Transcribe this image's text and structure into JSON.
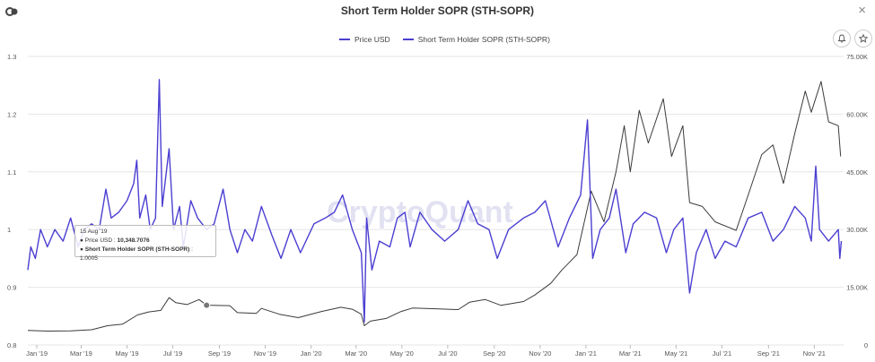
{
  "header": {
    "title": "Short Term Holder SOPR (STH-SOPR)",
    "close_label": "×"
  },
  "icons": {
    "logo": "cryptoquant-logo-icon",
    "alert": "bell-icon",
    "favorite": "star-icon"
  },
  "watermark": "CryptoQuant",
  "tooltip": {
    "date": "15 Aug '19",
    "price_label": "Price USD",
    "price_value": "10,348.7076",
    "sopr_label": "Short Term Holder SOPR (STH-SOPR)",
    "sopr_value": "1.0005"
  },
  "colors": {
    "price": "#3b3b3b",
    "sopr": "#4b3fd1",
    "grid": "#e6e6e6"
  },
  "chart_data": {
    "type": "line",
    "title": "Short Term Holder SOPR (STH-SOPR)",
    "x_ticks": [
      "Jan '19",
      "Mar '19",
      "May '19",
      "Jul '19",
      "Sep '19",
      "Nov '19",
      "Jan '20",
      "Mar '20",
      "May '20",
      "Jul '20",
      "Sep '20",
      "Nov '20",
      "Jan '21",
      "Mar '21",
      "May '21",
      "Jul '21",
      "Sep '21",
      "Nov '21"
    ],
    "x_range": [
      "2018-12-20",
      "2021-12-10"
    ],
    "left_axis": {
      "ticks": [
        "0.8",
        "0.9",
        "1",
        "1.1",
        "1.2",
        "1.3"
      ],
      "values": [
        0.8,
        0.9,
        1.0,
        1.1,
        1.2,
        1.3
      ],
      "ylim": [
        0.8,
        1.3
      ]
    },
    "right_axis": {
      "ticks": [
        "0",
        "15.00K",
        "30.00K",
        "45.00K",
        "60.00K",
        "75.00K"
      ],
      "values": [
        0,
        15000,
        30000,
        45000,
        60000,
        75000
      ],
      "ylim": [
        0,
        75000
      ]
    },
    "legend_position": "top-center",
    "grid": true,
    "series": [
      {
        "name": "Price USD",
        "axis": "right",
        "points": [
          [
            "2018-12-20",
            3800
          ],
          [
            "2019-01-15",
            3600
          ],
          [
            "2019-02-15",
            3650
          ],
          [
            "2019-03-15",
            3950
          ],
          [
            "2019-04-05",
            5000
          ],
          [
            "2019-04-25",
            5400
          ],
          [
            "2019-05-15",
            7800
          ],
          [
            "2019-05-30",
            8600
          ],
          [
            "2019-06-15",
            9000
          ],
          [
            "2019-06-26",
            12300
          ],
          [
            "2019-07-05",
            11000
          ],
          [
            "2019-07-20",
            10500
          ],
          [
            "2019-08-05",
            11800
          ],
          [
            "2019-08-15",
            10348
          ],
          [
            "2019-09-15",
            10200
          ],
          [
            "2019-09-25",
            8400
          ],
          [
            "2019-10-20",
            8200
          ],
          [
            "2019-10-27",
            9500
          ],
          [
            "2019-11-20",
            8000
          ],
          [
            "2019-12-15",
            7100
          ],
          [
            "2020-01-15",
            8700
          ],
          [
            "2020-02-10",
            9800
          ],
          [
            "2020-02-25",
            9300
          ],
          [
            "2020-03-08",
            8000
          ],
          [
            "2020-03-12",
            5000
          ],
          [
            "2020-03-20",
            6200
          ],
          [
            "2020-04-10",
            6900
          ],
          [
            "2020-04-30",
            8700
          ],
          [
            "2020-05-15",
            9600
          ],
          [
            "2020-06-15",
            9400
          ],
          [
            "2020-07-15",
            9200
          ],
          [
            "2020-07-30",
            11100
          ],
          [
            "2020-08-20",
            11800
          ],
          [
            "2020-09-10",
            10300
          ],
          [
            "2020-10-10",
            11300
          ],
          [
            "2020-10-25",
            13000
          ],
          [
            "2020-11-15",
            16000
          ],
          [
            "2020-11-30",
            19500
          ],
          [
            "2020-12-20",
            23500
          ],
          [
            "2021-01-08",
            40000
          ],
          [
            "2021-01-25",
            32000
          ],
          [
            "2021-02-10",
            45000
          ],
          [
            "2021-02-21",
            57000
          ],
          [
            "2021-03-01",
            45000
          ],
          [
            "2021-03-13",
            61000
          ],
          [
            "2021-03-25",
            52500
          ],
          [
            "2021-04-14",
            64000
          ],
          [
            "2021-04-25",
            49000
          ],
          [
            "2021-05-10",
            57000
          ],
          [
            "2021-05-19",
            37000
          ],
          [
            "2021-06-05",
            36000
          ],
          [
            "2021-06-22",
            32000
          ],
          [
            "2021-07-20",
            29800
          ],
          [
            "2021-08-05",
            39000
          ],
          [
            "2021-08-23",
            49500
          ],
          [
            "2021-09-07",
            52000
          ],
          [
            "2021-09-21",
            42000
          ],
          [
            "2021-10-06",
            55000
          ],
          [
            "2021-10-20",
            66000
          ],
          [
            "2021-10-28",
            60500
          ],
          [
            "2021-11-10",
            68500
          ],
          [
            "2021-11-20",
            58000
          ],
          [
            "2021-12-03",
            57000
          ],
          [
            "2021-12-06",
            49000
          ]
        ]
      },
      {
        "name": "Short Term Holder SOPR (STH-SOPR)",
        "axis": "left",
        "points": [
          [
            "2018-12-20",
            0.93
          ],
          [
            "2018-12-24",
            0.97
          ],
          [
            "2018-12-30",
            0.95
          ],
          [
            "2019-01-06",
            1.0
          ],
          [
            "2019-01-15",
            0.97
          ],
          [
            "2019-01-25",
            1.0
          ],
          [
            "2019-02-05",
            0.98
          ],
          [
            "2019-02-15",
            1.02
          ],
          [
            "2019-02-25",
            0.97
          ],
          [
            "2019-03-05",
            1.0
          ],
          [
            "2019-03-15",
            1.01
          ],
          [
            "2019-03-25",
            1.0
          ],
          [
            "2019-04-03",
            1.07
          ],
          [
            "2019-04-10",
            1.02
          ],
          [
            "2019-04-20",
            1.03
          ],
          [
            "2019-05-01",
            1.05
          ],
          [
            "2019-05-10",
            1.08
          ],
          [
            "2019-05-14",
            1.12
          ],
          [
            "2019-05-18",
            1.02
          ],
          [
            "2019-05-26",
            1.06
          ],
          [
            "2019-06-01",
            1.0
          ],
          [
            "2019-06-08",
            1.02
          ],
          [
            "2019-06-13",
            1.26
          ],
          [
            "2019-06-17",
            1.04
          ],
          [
            "2019-06-26",
            1.14
          ],
          [
            "2019-07-02",
            1.0
          ],
          [
            "2019-07-10",
            1.04
          ],
          [
            "2019-07-15",
            0.97
          ],
          [
            "2019-07-25",
            1.05
          ],
          [
            "2019-08-03",
            1.02
          ],
          [
            "2019-08-15",
            1.0
          ],
          [
            "2019-08-25",
            1.01
          ],
          [
            "2019-09-06",
            1.07
          ],
          [
            "2019-09-15",
            1.0
          ],
          [
            "2019-09-25",
            0.96
          ],
          [
            "2019-10-05",
            1.0
          ],
          [
            "2019-10-15",
            0.98
          ],
          [
            "2019-10-27",
            1.04
          ],
          [
            "2019-11-10",
            0.99
          ],
          [
            "2019-11-22",
            0.95
          ],
          [
            "2019-12-05",
            1.0
          ],
          [
            "2019-12-18",
            0.96
          ],
          [
            "2020-01-05",
            1.01
          ],
          [
            "2020-01-20",
            1.02
          ],
          [
            "2020-02-01",
            1.03
          ],
          [
            "2020-02-12",
            1.06
          ],
          [
            "2020-02-25",
            1.0
          ],
          [
            "2020-03-08",
            0.96
          ],
          [
            "2020-03-12",
            0.84
          ],
          [
            "2020-03-15",
            1.02
          ],
          [
            "2020-03-22",
            0.93
          ],
          [
            "2020-04-01",
            0.98
          ],
          [
            "2020-04-15",
            0.97
          ],
          [
            "2020-04-25",
            1.02
          ],
          [
            "2020-05-05",
            1.03
          ],
          [
            "2020-05-12",
            0.97
          ],
          [
            "2020-05-25",
            1.03
          ],
          [
            "2020-06-10",
            1.0
          ],
          [
            "2020-06-27",
            0.98
          ],
          [
            "2020-07-15",
            1.0
          ],
          [
            "2020-07-28",
            1.05
          ],
          [
            "2020-08-10",
            1.01
          ],
          [
            "2020-08-25",
            1.0
          ],
          [
            "2020-09-05",
            0.95
          ],
          [
            "2020-09-20",
            1.0
          ],
          [
            "2020-10-10",
            1.02
          ],
          [
            "2020-10-25",
            1.03
          ],
          [
            "2020-11-08",
            1.05
          ],
          [
            "2020-11-25",
            0.97
          ],
          [
            "2020-12-10",
            1.02
          ],
          [
            "2020-12-25",
            1.06
          ],
          [
            "2021-01-03",
            1.19
          ],
          [
            "2021-01-10",
            0.95
          ],
          [
            "2021-01-20",
            1.0
          ],
          [
            "2021-02-01",
            1.02
          ],
          [
            "2021-02-10",
            1.07
          ],
          [
            "2021-02-23",
            0.96
          ],
          [
            "2021-03-05",
            1.01
          ],
          [
            "2021-03-20",
            1.03
          ],
          [
            "2021-04-05",
            1.02
          ],
          [
            "2021-04-18",
            0.96
          ],
          [
            "2021-04-28",
            1.0
          ],
          [
            "2021-05-10",
            1.02
          ],
          [
            "2021-05-19",
            0.89
          ],
          [
            "2021-05-28",
            0.96
          ],
          [
            "2021-06-10",
            1.0
          ],
          [
            "2021-06-22",
            0.95
          ],
          [
            "2021-07-05",
            0.98
          ],
          [
            "2021-07-20",
            0.97
          ],
          [
            "2021-08-05",
            1.02
          ],
          [
            "2021-08-23",
            1.03
          ],
          [
            "2021-09-07",
            0.98
          ],
          [
            "2021-09-21",
            1.0
          ],
          [
            "2021-10-06",
            1.04
          ],
          [
            "2021-10-20",
            1.02
          ],
          [
            "2021-10-28",
            0.98
          ],
          [
            "2021-11-03",
            1.11
          ],
          [
            "2021-11-08",
            1.0
          ],
          [
            "2021-11-20",
            0.98
          ],
          [
            "2021-12-03",
            1.0
          ],
          [
            "2021-12-05",
            0.95
          ],
          [
            "2021-12-07",
            0.98
          ]
        ]
      }
    ]
  }
}
